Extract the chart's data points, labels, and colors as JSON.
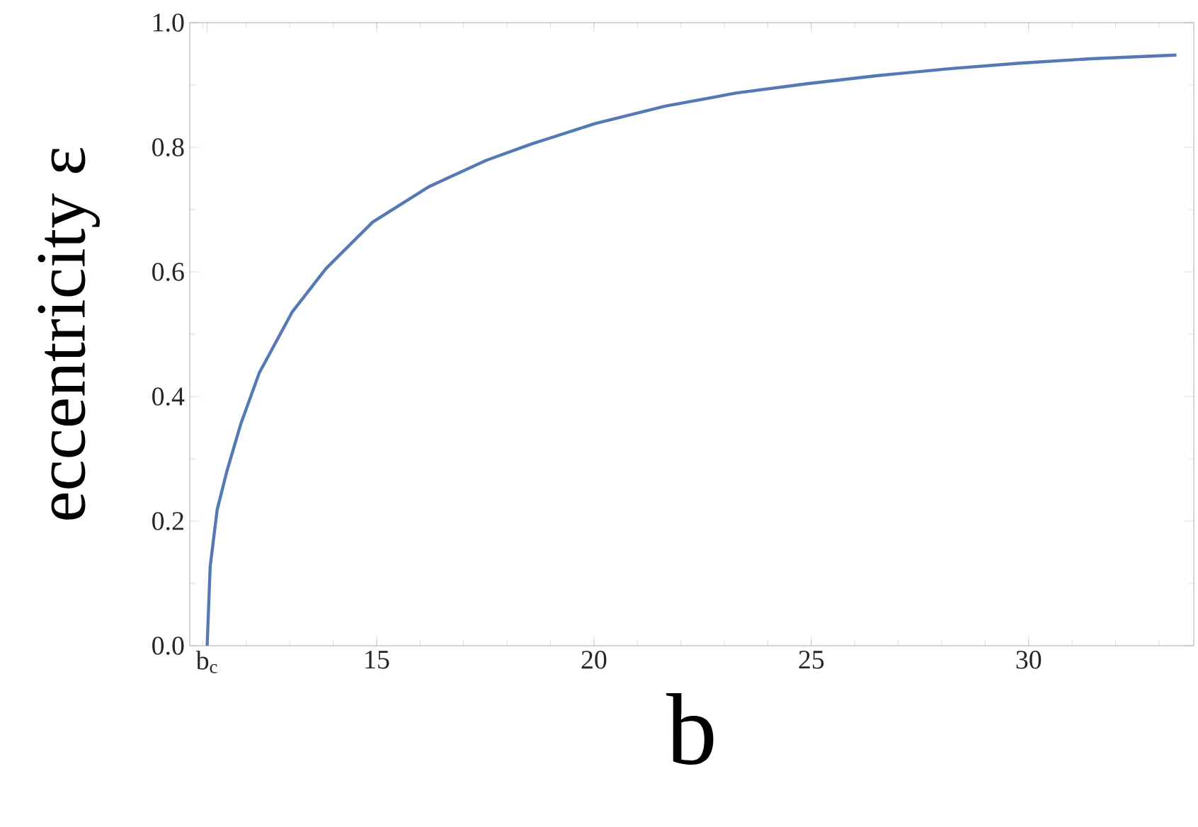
{
  "chart_data": {
    "type": "line",
    "xlabel": "b",
    "ylabel": "eccentricity ε",
    "x": [
      11.1,
      11.17,
      11.33,
      11.55,
      11.87,
      12.3,
      13.06,
      13.83,
      14.91,
      16.21,
      17.52,
      18.55,
      20.02,
      21.64,
      23.27,
      24.9,
      26.53,
      28.16,
      29.79,
      31.42,
      33.4
    ],
    "series": [
      {
        "color": "#5479b5",
        "values": [
          0,
          0.127,
          0.218,
          0.279,
          0.355,
          0.438,
          0.536,
          0.605,
          0.68,
          0.737,
          0.779,
          0.805,
          0.838,
          0.866,
          0.887,
          0.902,
          0.915,
          0.926,
          0.935,
          0.942,
          0.948
        ]
      }
    ],
    "xlim": [
      10.7,
      33.8
    ],
    "ylim": [
      0,
      1
    ],
    "xticks": [
      {
        "value": 11.1,
        "label": "b$_{c}$"
      },
      15,
      20,
      25,
      30
    ],
    "yticks": [
      {
        "value": 0,
        "label": "0.0"
      },
      {
        "value": 0.2,
        "label": "0.2"
      },
      {
        "value": 0.4,
        "label": "0.4"
      },
      {
        "value": 0.6,
        "label": "0.6"
      },
      {
        "value": 0.8,
        "label": "0.8"
      },
      {
        "value": 1,
        "label": "1.0"
      }
    ],
    "grid": false,
    "marker": "none",
    "line_style": "solid"
  }
}
